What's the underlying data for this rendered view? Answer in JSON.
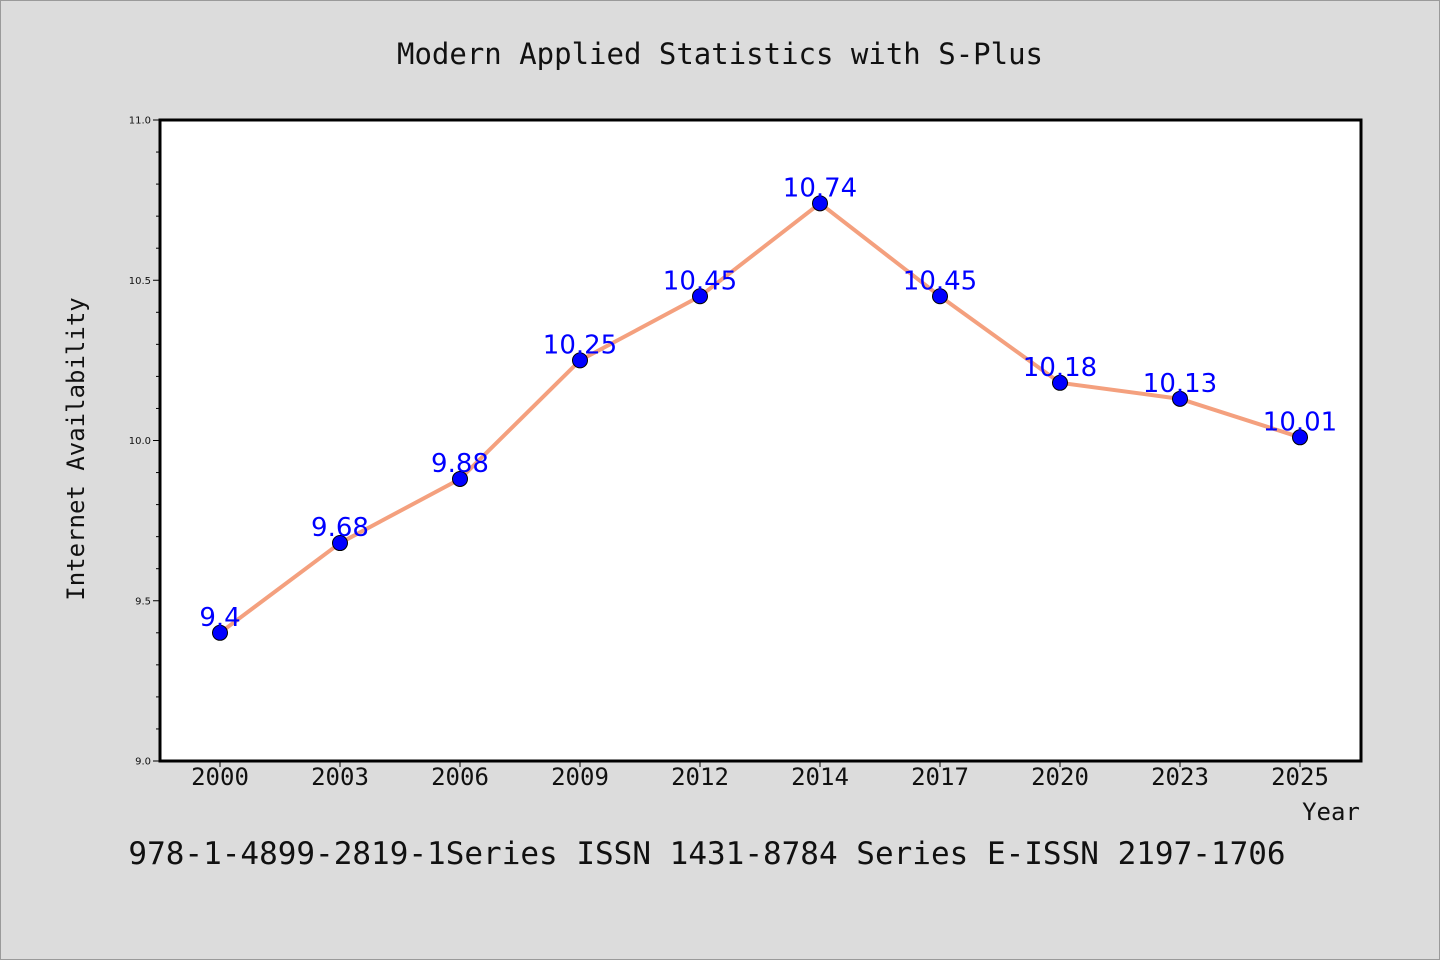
{
  "chart_data": {
    "type": "line",
    "title": "Modern Applied Statistics with S-Plus",
    "xlabel": "Year",
    "ylabel": "Internet Availability",
    "footer": "978-1-4899-2819-1Series ISSN 1431-8784 Series E-ISSN 2197-1706",
    "categories": [
      "2000",
      "2003",
      "2006",
      "2009",
      "2012",
      "2014",
      "2017",
      "2020",
      "2023",
      "2025"
    ],
    "series": [
      {
        "values": [
          9.4,
          9.68,
          9.88,
          10.25,
          10.45,
          10.74,
          10.45,
          10.18,
          10.13,
          10.01
        ],
        "line_color": "#f4a07e",
        "marker_color": "#0000ff"
      }
    ],
    "data_labels": [
      "9.4",
      "9.68",
      "9.88",
      "10.25",
      "10.45",
      "10.74",
      "10.45",
      "10.18",
      "10.13",
      "10.01"
    ],
    "ylim": [
      9.0,
      11.0
    ],
    "yticks": [
      "9.0",
      "9.5",
      "10.0",
      "10.5",
      "11.0"
    ],
    "grid": false,
    "legend": "none",
    "background_color": "#dcdcdc",
    "plot_background": "#ffffff"
  }
}
